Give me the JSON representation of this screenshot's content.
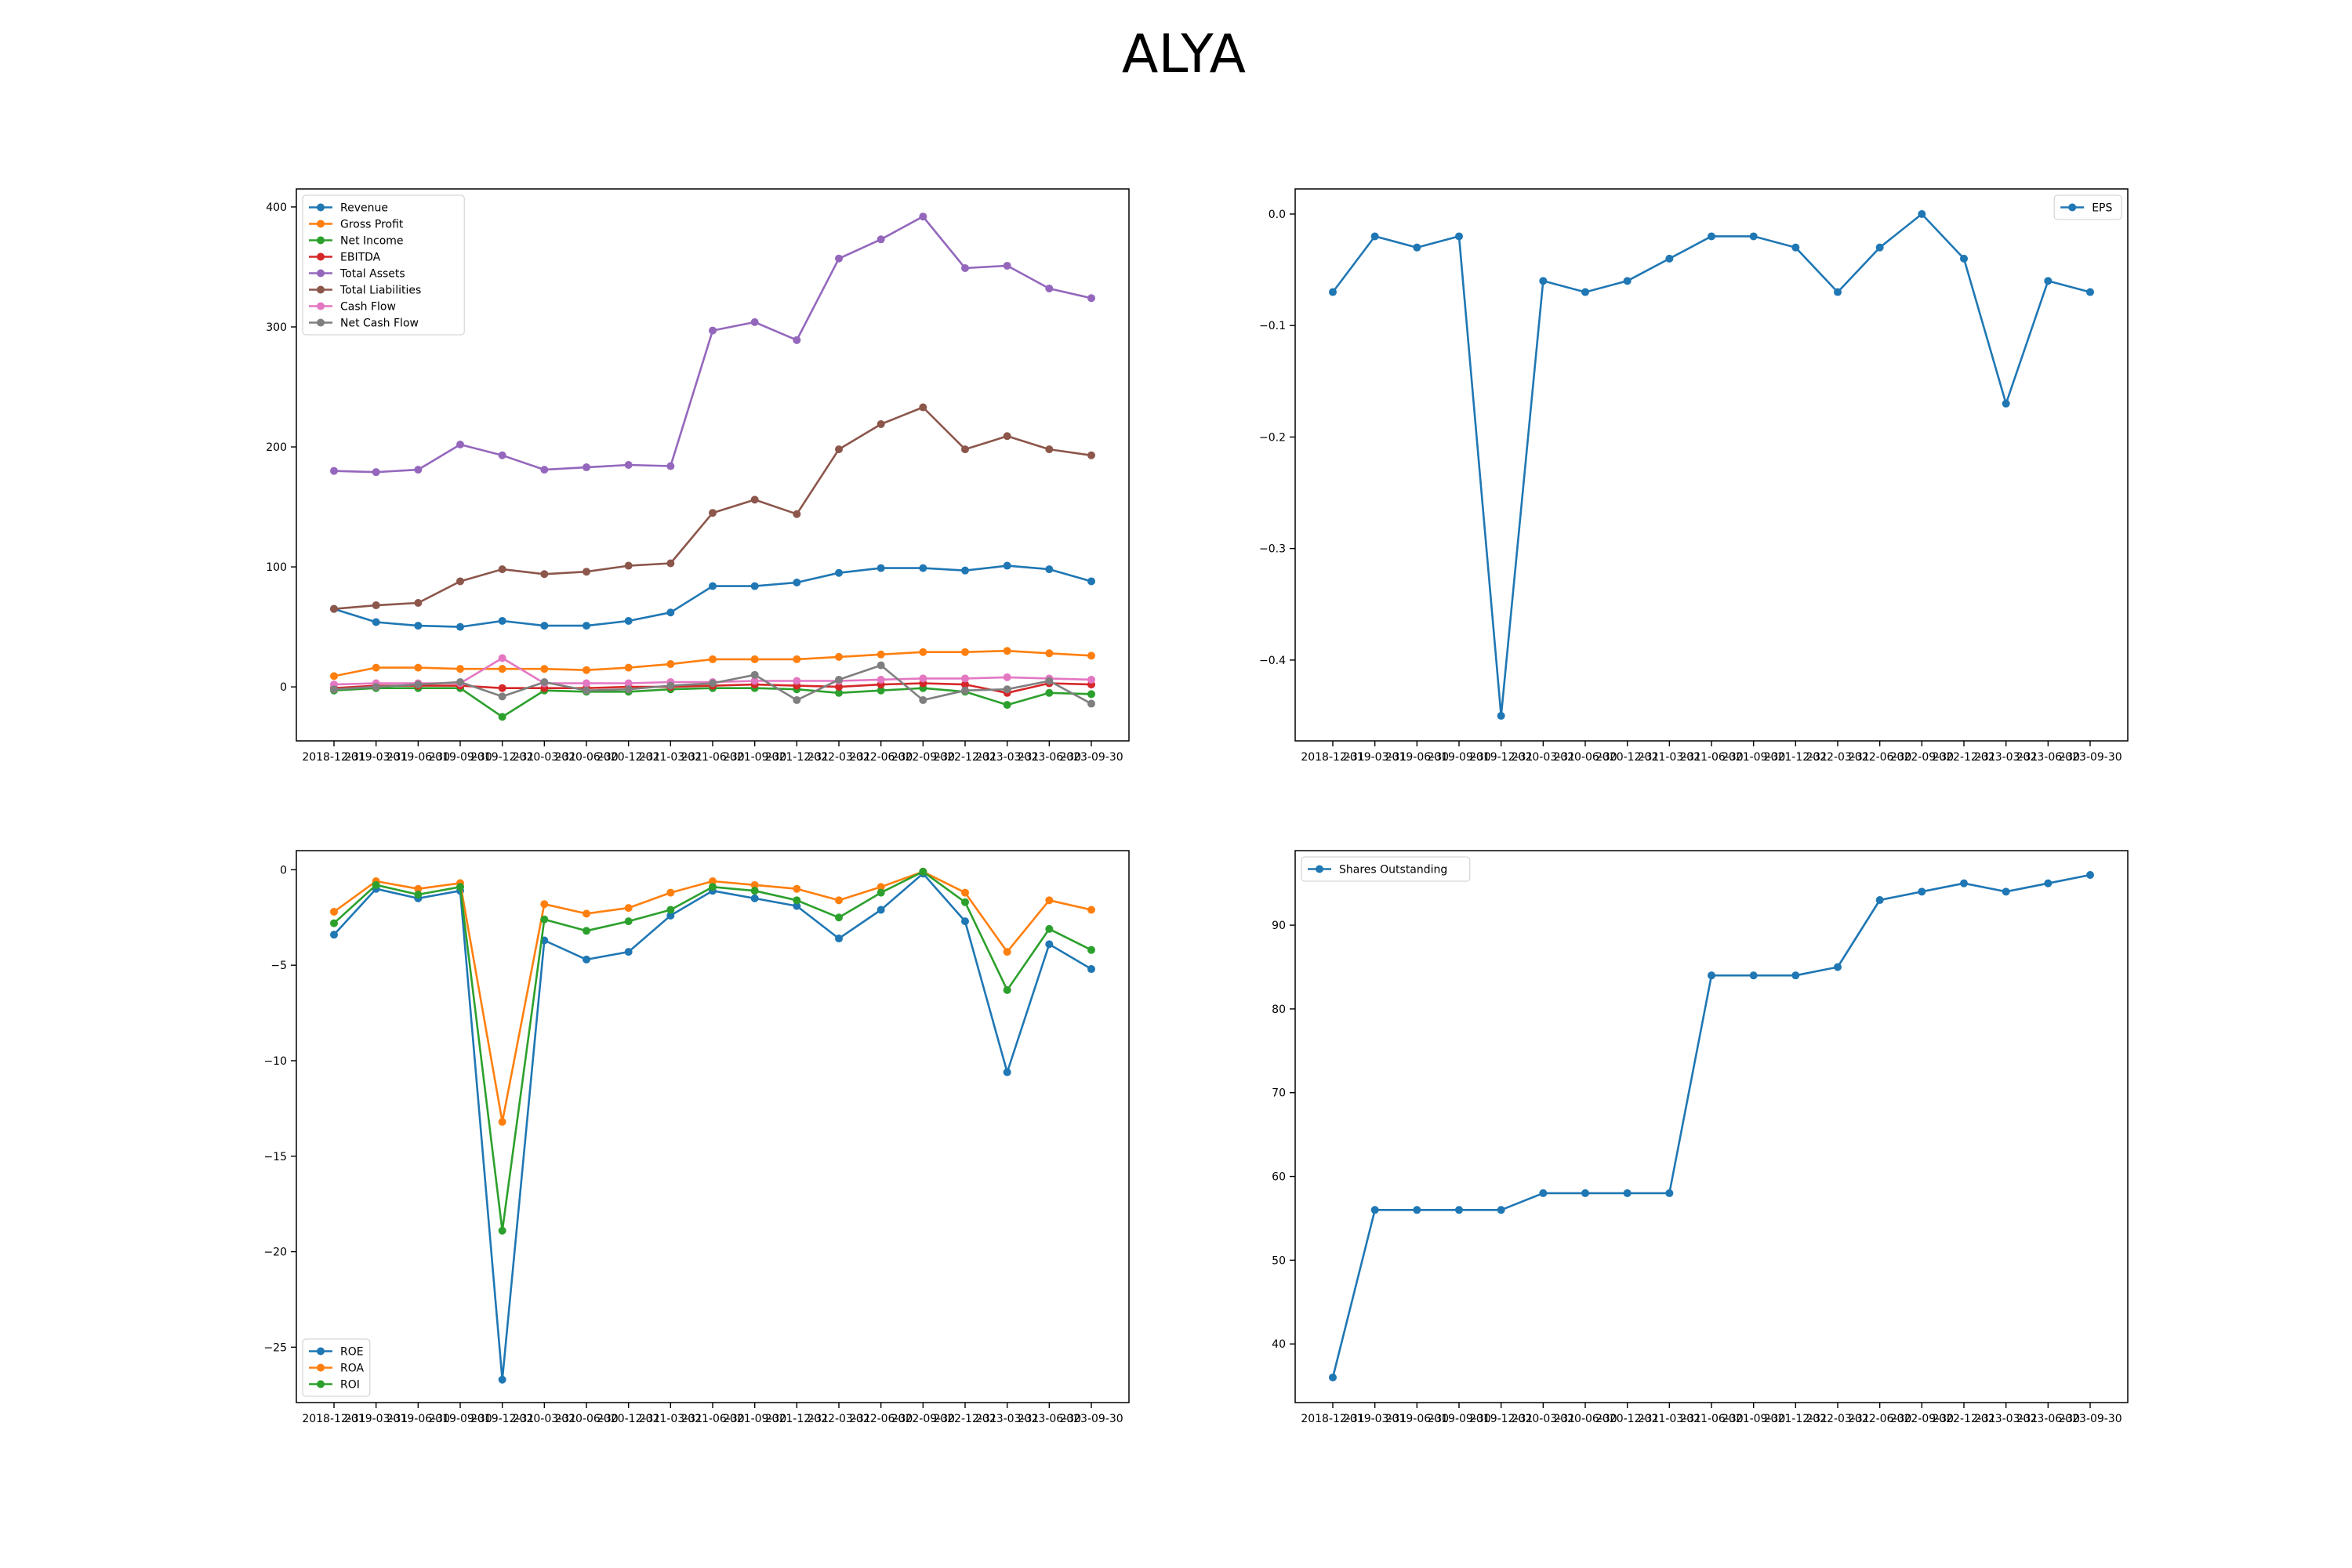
{
  "title": "ALYA",
  "colors": {
    "blue": "#1f77b4",
    "orange": "#ff7f0e",
    "green": "#2ca02c",
    "red": "#d62728",
    "purple": "#9467bd",
    "brown": "#8c564b",
    "pink": "#e377c2",
    "gray": "#7f7f7f"
  },
  "dates": [
    "2018-12-31",
    "2019-03-31",
    "2019-06-30",
    "2019-09-30",
    "2019-12-31",
    "2020-03-31",
    "2020-06-30",
    "2020-12-31",
    "2021-03-31",
    "2021-06-30",
    "2021-09-30",
    "2021-12-31",
    "2022-03-31",
    "2022-06-30",
    "2022-09-30",
    "2022-12-31",
    "2023-03-31",
    "2023-06-30",
    "2023-09-30"
  ],
  "chart_data": [
    {
      "id": "financials",
      "type": "line",
      "legend": "upper-left",
      "ylim": [
        -45,
        415
      ],
      "yticks": [
        0,
        100,
        200,
        300,
        400
      ],
      "series": [
        {
          "name": "Revenue",
          "color": "#1f77b4",
          "values": [
            65,
            54,
            51,
            50,
            55,
            51,
            51,
            55,
            62,
            84,
            84,
            87,
            95,
            99,
            99,
            97,
            101,
            98,
            88
          ]
        },
        {
          "name": "Gross Profit",
          "color": "#ff7f0e",
          "values": [
            9,
            16,
            16,
            15,
            15,
            15,
            14,
            16,
            19,
            23,
            23,
            23,
            25,
            27,
            29,
            29,
            30,
            28,
            26
          ]
        },
        {
          "name": "Net Income",
          "color": "#2ca02c",
          "values": [
            -3,
            -1,
            -1,
            -1,
            -25,
            -3,
            -4,
            -4,
            -2,
            -1,
            -1,
            -2,
            -5,
            -3,
            -1,
            -4,
            -15,
            -5,
            -6
          ]
        },
        {
          "name": "EBITDA",
          "color": "#d62728",
          "values": [
            -1,
            1,
            1,
            1,
            -1,
            -1,
            -1,
            0,
            0,
            1,
            2,
            1,
            0,
            2,
            3,
            2,
            -5,
            3,
            2
          ]
        },
        {
          "name": "Total Assets",
          "color": "#9467bd",
          "values": [
            180,
            179,
            181,
            202,
            193,
            181,
            183,
            185,
            184,
            297,
            304,
            289,
            357,
            373,
            392,
            349,
            351,
            332,
            324
          ]
        },
        {
          "name": "Total Liabilities",
          "color": "#8c564b",
          "values": [
            65,
            68,
            70,
            88,
            98,
            94,
            96,
            101,
            103,
            145,
            156,
            144,
            198,
            219,
            233,
            198,
            209,
            198,
            193
          ]
        },
        {
          "name": "Cash Flow",
          "color": "#e377c2",
          "values": [
            2,
            3,
            3,
            3,
            24,
            3,
            3,
            3,
            4,
            4,
            5,
            5,
            5,
            6,
            7,
            7,
            8,
            7,
            6
          ]
        },
        {
          "name": "Net Cash Flow",
          "color": "#7f7f7f",
          "values": [
            -2,
            0,
            2,
            4,
            -8,
            4,
            -3,
            -2,
            1,
            3,
            10,
            -11,
            6,
            18,
            -11,
            -3,
            -2,
            5,
            -14
          ]
        }
      ]
    },
    {
      "id": "eps",
      "type": "line",
      "legend": "upper-right",
      "ylim": [
        -0.4725,
        0.0225
      ],
      "yticks": [
        0.0,
        -0.1,
        -0.2,
        -0.3,
        -0.4
      ],
      "ytick_labels": [
        "0.0",
        "−0.1",
        "−0.2",
        "−0.3",
        "−0.4"
      ],
      "series": [
        {
          "name": "EPS",
          "color": "#1f77b4",
          "values": [
            -0.07,
            -0.02,
            -0.03,
            -0.02,
            -0.45,
            -0.06,
            -0.07,
            -0.06,
            -0.04,
            -0.02,
            -0.02,
            -0.03,
            -0.07,
            -0.03,
            0.0,
            -0.04,
            -0.17,
            -0.06,
            -0.07
          ]
        }
      ]
    },
    {
      "id": "ratios",
      "type": "line",
      "legend": "lower-left",
      "ylim": [
        -27.9,
        1.0
      ],
      "yticks": [
        0,
        -5,
        -10,
        -15,
        -20,
        -25
      ],
      "ytick_labels": [
        "0",
        "−5",
        "−10",
        "−15",
        "−20",
        "−25"
      ],
      "series": [
        {
          "name": "ROE",
          "color": "#1f77b4",
          "values": [
            -3.4,
            -1.0,
            -1.5,
            -1.1,
            -26.7,
            -3.7,
            -4.7,
            -4.3,
            -2.4,
            -1.1,
            -1.5,
            -1.9,
            -3.6,
            -2.1,
            -0.2,
            -2.7,
            -10.6,
            -3.9,
            -5.2
          ]
        },
        {
          "name": "ROA",
          "color": "#ff7f0e",
          "values": [
            -2.2,
            -0.6,
            -1.0,
            -0.7,
            -13.2,
            -1.8,
            -2.3,
            -2.0,
            -1.2,
            -0.6,
            -0.8,
            -1.0,
            -1.6,
            -0.9,
            -0.1,
            -1.2,
            -4.3,
            -1.6,
            -2.1
          ]
        },
        {
          "name": "ROI",
          "color": "#2ca02c",
          "values": [
            -2.8,
            -0.8,
            -1.3,
            -0.9,
            -18.9,
            -2.6,
            -3.2,
            -2.7,
            -2.1,
            -0.9,
            -1.1,
            -1.6,
            -2.5,
            -1.2,
            -0.1,
            -1.7,
            -6.3,
            -3.1,
            -4.2
          ]
        }
      ]
    },
    {
      "id": "shares",
      "type": "line",
      "legend": "upper-left",
      "ylim": [
        33,
        98.9
      ],
      "yticks": [
        40,
        50,
        60,
        70,
        80,
        90
      ],
      "series": [
        {
          "name": "Shares Outstanding",
          "color": "#1f77b4",
          "values": [
            36,
            56,
            56,
            56,
            56,
            58,
            58,
            58,
            58,
            84,
            84,
            84,
            85,
            93,
            94,
            95,
            94,
            95,
            96
          ]
        }
      ]
    }
  ]
}
